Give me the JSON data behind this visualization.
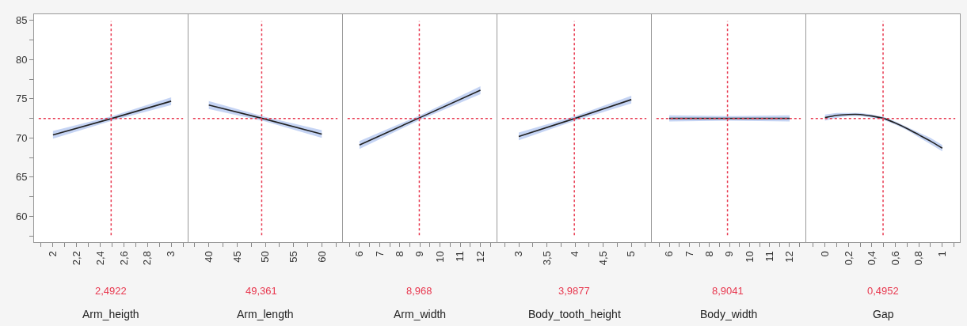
{
  "chart_data": [
    {
      "type": "line",
      "xlabel": "Arm_heigth",
      "x": [
        2,
        2.5,
        3
      ],
      "series": [
        {
          "color": "#222222",
          "values": [
            70.4,
            72.5,
            74.7
          ],
          "lower": [
            69.9,
            72.2,
            74.2
          ],
          "upper": [
            70.9,
            72.8,
            75.2
          ]
        }
      ],
      "xlim": [
        1.84,
        3.14
      ],
      "xticks": [
        {
          "value": 1.9,
          "label": null
        },
        {
          "value": 2,
          "label": "2"
        },
        {
          "value": 2.1,
          "label": null
        },
        {
          "value": 2.2,
          "label": "2,2"
        },
        {
          "value": 2.3,
          "label": null
        },
        {
          "value": 2.4,
          "label": "2,4"
        },
        {
          "value": 2.5,
          "label": null
        },
        {
          "value": 2.6,
          "label": "2,6"
        },
        {
          "value": 2.7,
          "label": null
        },
        {
          "value": 2.8,
          "label": "2,8"
        },
        {
          "value": 2.9,
          "label": null
        },
        {
          "value": 3,
          "label": "3"
        },
        {
          "value": 3.1,
          "label": null
        }
      ],
      "ylim": [
        56.7,
        85.8
      ],
      "yticks": [
        {
          "value": 57.5,
          "label": null
        },
        60,
        {
          "value": 62.5,
          "label": null
        },
        65,
        {
          "value": 67.5,
          "label": null
        },
        70,
        {
          "value": 72.5,
          "label": null
        },
        75,
        {
          "value": 77.5,
          "label": null
        },
        80,
        {
          "value": 82.5,
          "label": null
        },
        85
      ],
      "ref_lines": [
        {
          "axis": "x",
          "value": 2.4922,
          "label": "2,4922",
          "color": "#e8384f",
          "line_style": "dotted"
        },
        {
          "axis": "y",
          "value": 72.5,
          "color": "#e8384f",
          "line_style": "dotted"
        }
      ],
      "grid": false,
      "marker": "none",
      "line_style": "solid"
    },
    {
      "type": "line",
      "xlabel": "Arm_length",
      "x": [
        40,
        50,
        60
      ],
      "series": [
        {
          "color": "#222222",
          "values": [
            74.2,
            72.4,
            70.5
          ],
          "lower": [
            73.7,
            72.1,
            70.0
          ],
          "upper": [
            74.7,
            72.7,
            71.0
          ]
        }
      ],
      "xlim": [
        36.4,
        63.6
      ],
      "xticks": [
        {
          "value": 37.5,
          "label": null
        },
        {
          "value": 40,
          "label": "40"
        },
        {
          "value": 42.5,
          "label": null
        },
        {
          "value": 45,
          "label": "45"
        },
        {
          "value": 47.5,
          "label": null
        },
        {
          "value": 50,
          "label": "50"
        },
        {
          "value": 52.5,
          "label": null
        },
        {
          "value": 55,
          "label": "55"
        },
        {
          "value": 57.5,
          "label": null
        },
        {
          "value": 60,
          "label": "60"
        },
        {
          "value": 62.5,
          "label": null
        }
      ],
      "ylim": [
        56.7,
        85.8
      ],
      "ref_lines": [
        {
          "axis": "x",
          "value": 49.361,
          "label": "49,361",
          "color": "#e8384f",
          "line_style": "dotted"
        },
        {
          "axis": "y",
          "value": 72.5,
          "color": "#e8384f",
          "line_style": "dotted"
        }
      ],
      "tick_labels": "x",
      "grid": false,
      "marker": "none",
      "line_style": "solid"
    },
    {
      "type": "line",
      "xlabel": "Arm_width",
      "x": [
        6,
        9,
        12
      ],
      "series": [
        {
          "color": "#222222",
          "values": [
            69.1,
            72.6,
            76.1
          ],
          "lower": [
            68.6,
            72.3,
            75.6
          ],
          "upper": [
            69.6,
            72.9,
            76.6
          ]
        }
      ],
      "xlim": [
        5.18,
        12.8
      ],
      "xticks": [
        {
          "value": 5.5,
          "label": null
        },
        {
          "value": 6,
          "label": "6"
        },
        {
          "value": 6.5,
          "label": null
        },
        {
          "value": 7,
          "label": "7"
        },
        {
          "value": 7.5,
          "label": null
        },
        {
          "value": 8,
          "label": "8"
        },
        {
          "value": 8.5,
          "label": null
        },
        {
          "value": 9,
          "label": "9"
        },
        {
          "value": 9.5,
          "label": null
        },
        {
          "value": 10,
          "label": "10"
        },
        {
          "value": 10.5,
          "label": null
        },
        {
          "value": 11,
          "label": "11"
        },
        {
          "value": 11.5,
          "label": null
        },
        {
          "value": 12,
          "label": "12"
        },
        {
          "value": 12.5,
          "label": null
        }
      ],
      "ylim": [
        56.7,
        85.8
      ],
      "ref_lines": [
        {
          "axis": "x",
          "value": 8.968,
          "label": "8,968",
          "color": "#e8384f",
          "line_style": "dotted"
        },
        {
          "axis": "y",
          "value": 72.5,
          "color": "#e8384f",
          "line_style": "dotted"
        }
      ],
      "tick_labels": "x",
      "grid": false,
      "marker": "none",
      "line_style": "solid"
    },
    {
      "type": "line",
      "xlabel": "Body_tooth_height",
      "x": [
        3,
        4,
        5
      ],
      "series": [
        {
          "color": "#222222",
          "values": [
            70.2,
            72.5,
            74.9
          ],
          "lower": [
            69.7,
            72.2,
            74.4
          ],
          "upper": [
            70.7,
            72.8,
            75.4
          ]
        }
      ],
      "xlim": [
        2.62,
        5.35
      ],
      "xticks": [
        {
          "value": 2.75,
          "label": null
        },
        {
          "value": 3,
          "label": "3"
        },
        {
          "value": 3.25,
          "label": null
        },
        {
          "value": 3.5,
          "label": "3,5"
        },
        {
          "value": 3.75,
          "label": null
        },
        {
          "value": 4,
          "label": "4"
        },
        {
          "value": 4.25,
          "label": null
        },
        {
          "value": 4.5,
          "label": "4,5"
        },
        {
          "value": 4.75,
          "label": null
        },
        {
          "value": 5,
          "label": "5"
        },
        {
          "value": 5.25,
          "label": null
        }
      ],
      "ylim": [
        56.7,
        85.8
      ],
      "ref_lines": [
        {
          "axis": "x",
          "value": 3.9877,
          "label": "3,9877",
          "color": "#e8384f",
          "line_style": "dotted"
        },
        {
          "axis": "y",
          "value": 72.5,
          "color": "#e8384f",
          "line_style": "dotted"
        }
      ],
      "tick_labels": "x",
      "grid": false,
      "marker": "none",
      "line_style": "solid"
    },
    {
      "type": "line",
      "xlabel": "Body_width",
      "x": [
        6,
        9,
        12
      ],
      "series": [
        {
          "color": "#222222",
          "values": [
            72.5,
            72.5,
            72.5
          ],
          "lower": [
            72.1,
            72.2,
            72.1
          ],
          "upper": [
            72.9,
            72.8,
            72.9
          ]
        }
      ],
      "xlim": [
        5.13,
        12.79
      ],
      "xticks": [
        {
          "value": 5.5,
          "label": null
        },
        {
          "value": 6,
          "label": "6"
        },
        {
          "value": 6.5,
          "label": null
        },
        {
          "value": 7,
          "label": "7"
        },
        {
          "value": 7.5,
          "label": null
        },
        {
          "value": 8,
          "label": "8"
        },
        {
          "value": 8.5,
          "label": null
        },
        {
          "value": 9,
          "label": "9"
        },
        {
          "value": 9.5,
          "label": null
        },
        {
          "value": 10,
          "label": "10"
        },
        {
          "value": 10.5,
          "label": null
        },
        {
          "value": 11,
          "label": "11"
        },
        {
          "value": 11.5,
          "label": null
        },
        {
          "value": 12,
          "label": "12"
        },
        {
          "value": 12.5,
          "label": null
        }
      ],
      "ylim": [
        56.7,
        85.8
      ],
      "ref_lines": [
        {
          "axis": "x",
          "value": 8.9041,
          "label": "8,9041",
          "color": "#e8384f",
          "line_style": "dotted"
        },
        {
          "axis": "y",
          "value": 72.5,
          "color": "#e8384f",
          "line_style": "dotted"
        }
      ],
      "tick_labels": "x",
      "grid": false,
      "marker": "none",
      "line_style": "solid"
    },
    {
      "type": "line",
      "xlabel": "Gap",
      "x": [
        0,
        0.1,
        0.2,
        0.3,
        0.4,
        0.5,
        0.6,
        0.7,
        0.8,
        0.9,
        1
      ],
      "series": [
        {
          "color": "#222222",
          "values": [
            72.6,
            72.9,
            73.0,
            73.0,
            72.8,
            72.5,
            71.9,
            71.2,
            70.4,
            69.6,
            68.7
          ],
          "lower": [
            72.2,
            72.6,
            72.8,
            72.8,
            72.6,
            72.3,
            71.7,
            71.0,
            70.1,
            69.2,
            68.3
          ],
          "upper": [
            73.0,
            73.2,
            73.2,
            73.2,
            73.0,
            72.7,
            72.1,
            71.4,
            70.7,
            70.0,
            69.1
          ]
        }
      ],
      "xlim": [
        -0.16,
        1.15
      ],
      "xticks": [
        {
          "value": -0.1,
          "label": null
        },
        {
          "value": 0,
          "label": "0"
        },
        {
          "value": 0.1,
          "label": null
        },
        {
          "value": 0.2,
          "label": "0,2"
        },
        {
          "value": 0.3,
          "label": null
        },
        {
          "value": 0.4,
          "label": "0,4"
        },
        {
          "value": 0.5,
          "label": null
        },
        {
          "value": 0.6,
          "label": "0,6"
        },
        {
          "value": 0.7,
          "label": null
        },
        {
          "value": 0.8,
          "label": "0,8"
        },
        {
          "value": 0.9,
          "label": null
        },
        {
          "value": 1,
          "label": "1"
        },
        {
          "value": 1.1,
          "label": null
        }
      ],
      "ylim": [
        56.7,
        85.8
      ],
      "ref_lines": [
        {
          "axis": "x",
          "value": 0.4952,
          "label": "0,4952",
          "color": "#e8384f",
          "line_style": "dotted"
        },
        {
          "axis": "y",
          "value": 72.5,
          "color": "#e8384f",
          "line_style": "dotted"
        }
      ],
      "tick_labels": "x",
      "grid": false,
      "marker": "none",
      "line_style": "solid"
    }
  ]
}
